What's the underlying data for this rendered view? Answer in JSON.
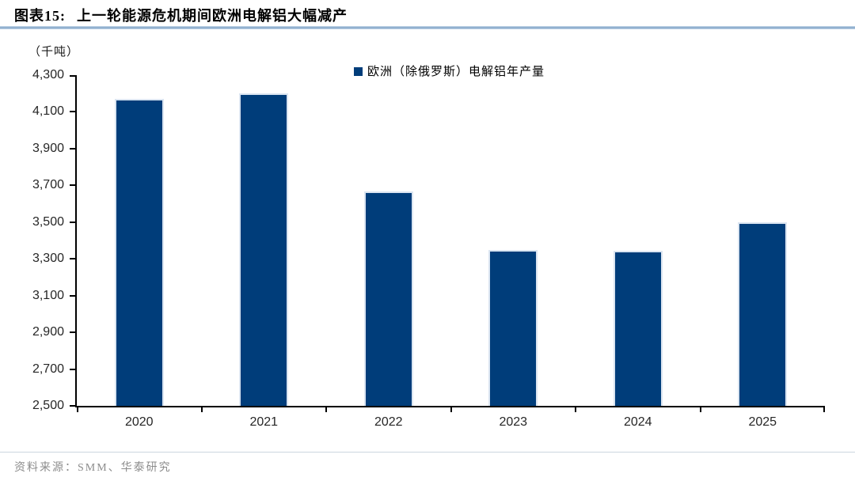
{
  "header": {
    "figure_label": "图表15:",
    "title": "上一轮能源危机期间欧洲电解铝大幅减产"
  },
  "chart_data": {
    "type": "bar",
    "title": "上一轮能源危机期间欧洲电解铝大幅减产",
    "categories": [
      "2020",
      "2021",
      "2022",
      "2023",
      "2024",
      "2025"
    ],
    "values": [
      4170,
      4200,
      3665,
      3350,
      3345,
      3500
    ],
    "series_name": "欧洲（除俄罗斯）电解铝年产量",
    "ylabel": "（千吨）",
    "xlabel": "",
    "ylim": [
      2500,
      4300
    ],
    "ytick_step": 200,
    "grid": false,
    "legend_position": "top-center",
    "bar_color": "#003D7A",
    "bar_border_color": "#DBE5F1",
    "axis_color": "#000000",
    "title_rule_color": "#7FA3C6"
  },
  "footer": {
    "source": "资料来源：SMM、华泰研究"
  }
}
